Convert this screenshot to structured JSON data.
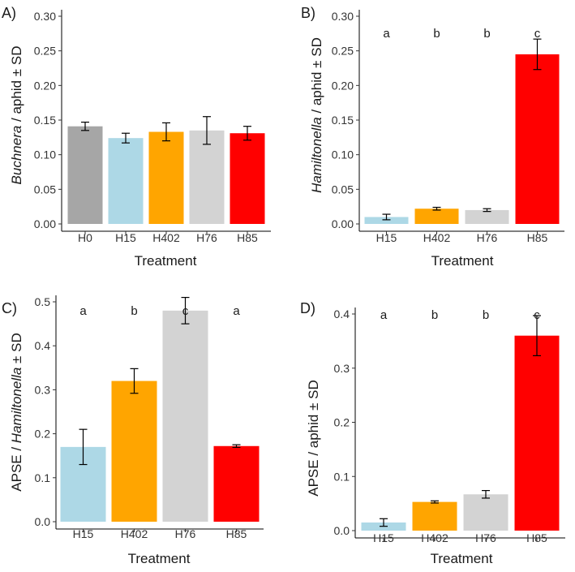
{
  "chart_data": [
    {
      "type": "bar",
      "panel_label": "A)",
      "title": "",
      "xlabel": "Treatment",
      "ylabel_italic": "Buchnera",
      "ylabel_rest": " / aphid ± SD",
      "ylim": [
        0,
        0.3
      ],
      "yticks": [
        "0.00",
        "0.05",
        "0.10",
        "0.15",
        "0.20",
        "0.25",
        "0.30"
      ],
      "categories": [
        "H0",
        "H15",
        "H402",
        "H76",
        "H85"
      ],
      "values": [
        0.141,
        0.124,
        0.133,
        0.135,
        0.131
      ],
      "errors": [
        0.006,
        0.007,
        0.013,
        0.02,
        0.01
      ],
      "colors": [
        "#a6a6a6",
        "#add8e6",
        "#ffa500",
        "#d3d3d3",
        "#ff0000"
      ],
      "significance_letters": []
    },
    {
      "type": "bar",
      "panel_label": "B)",
      "title": "",
      "xlabel": "Treatment",
      "ylabel_italic": "Hamiltonella",
      "ylabel_rest": " / aphid ± SD",
      "ylim": [
        0,
        0.3
      ],
      "yticks": [
        "0.00",
        "0.05",
        "0.10",
        "0.15",
        "0.20",
        "0.25",
        "0.30"
      ],
      "categories": [
        "H15",
        "H402",
        "H76",
        "H85"
      ],
      "values": [
        0.01,
        0.022,
        0.02,
        0.245
      ],
      "errors": [
        0.004,
        0.002,
        0.002,
        0.022
      ],
      "colors": [
        "#add8e6",
        "#ffa500",
        "#d3d3d3",
        "#ff0000"
      ],
      "significance_letters": [
        "a",
        "b",
        "b",
        "c"
      ]
    },
    {
      "type": "bar",
      "panel_label": "C)",
      "title": "",
      "xlabel": "Treatment",
      "ylabel_prefix": "APSE / ",
      "ylabel_italic": "Hamiltonella",
      "ylabel_rest": " ± SD",
      "ylim": [
        0,
        0.5
      ],
      "yticks": [
        "0.0",
        "0.1",
        "0.2",
        "0.3",
        "0.4",
        "0.5"
      ],
      "categories": [
        "H15",
        "H402",
        "H76",
        "H85"
      ],
      "values": [
        0.17,
        0.32,
        0.48,
        0.172
      ],
      "errors": [
        0.04,
        0.028,
        0.03,
        0.003
      ],
      "colors": [
        "#add8e6",
        "#ffa500",
        "#d3d3d3",
        "#ff0000"
      ],
      "significance_letters": [
        "a",
        "b",
        "c",
        "a"
      ]
    },
    {
      "type": "bar",
      "panel_label": "D)",
      "title": "",
      "xlabel": "Treatment",
      "ylabel_prefix": "APSE / aphid ± SD",
      "ylim": [
        0,
        0.4
      ],
      "yticks": [
        "0.0",
        "0.1",
        "0.2",
        "0.3",
        "0.4"
      ],
      "categories": [
        "H15",
        "H402",
        "H76",
        "H85"
      ],
      "values": [
        0.015,
        0.053,
        0.067,
        0.36
      ],
      "errors": [
        0.007,
        0.002,
        0.007,
        0.037
      ],
      "colors": [
        "#add8e6",
        "#ffa500",
        "#d3d3d3",
        "#ff0000"
      ],
      "significance_letters": [
        "a",
        "b",
        "b",
        "c"
      ]
    }
  ]
}
